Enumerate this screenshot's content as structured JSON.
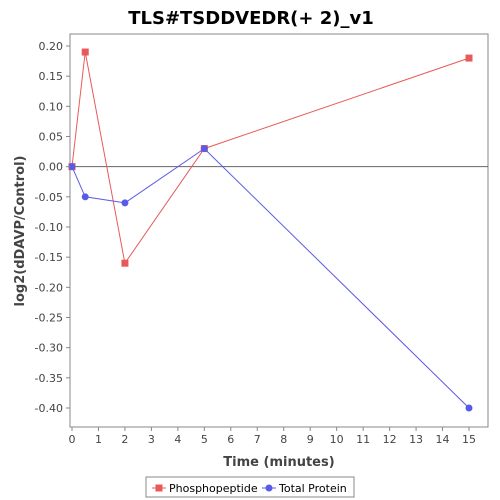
{
  "chart_data": {
    "type": "line",
    "title": "TLS#TSDDVEDR(+ 2)_v1",
    "xlabel": "Time (minutes)",
    "ylabel": "log2(dDAVP/Control)",
    "xlim": [
      0,
      15.6
    ],
    "ylim": [
      -0.425,
      0.21
    ],
    "x_ticks": [
      0,
      1,
      2,
      3,
      4,
      5,
      6,
      7,
      8,
      9,
      10,
      11,
      12,
      13,
      14,
      15
    ],
    "y_ticks": [
      0.2,
      0.15,
      0.1,
      0.05,
      0.0,
      -0.05,
      -0.1,
      -0.15,
      -0.2,
      -0.25,
      -0.3,
      -0.35,
      -0.4
    ],
    "y_tick_labels": [
      "0.20",
      "0.15",
      "0.10",
      "0.05",
      "0.00",
      "-0.05",
      "-0.10",
      "-0.15",
      "-0.20",
      "-0.25",
      "-0.30",
      "-0.35",
      "-0.40"
    ],
    "grid": false,
    "zero_line": true,
    "legend_position": "bottom",
    "series": [
      {
        "name": "Phosphopeptide",
        "color": "#e85a5a",
        "marker": "square",
        "x": [
          0,
          0.5,
          2,
          5,
          15
        ],
        "y": [
          0.0,
          0.19,
          -0.16,
          0.03,
          0.18
        ]
      },
      {
        "name": "Total Protein",
        "color": "#5a5ae8",
        "marker": "circle",
        "x": [
          0,
          0.5,
          2,
          5,
          15
        ],
        "y": [
          0.0,
          -0.05,
          -0.06,
          0.03,
          -0.4
        ]
      }
    ]
  }
}
